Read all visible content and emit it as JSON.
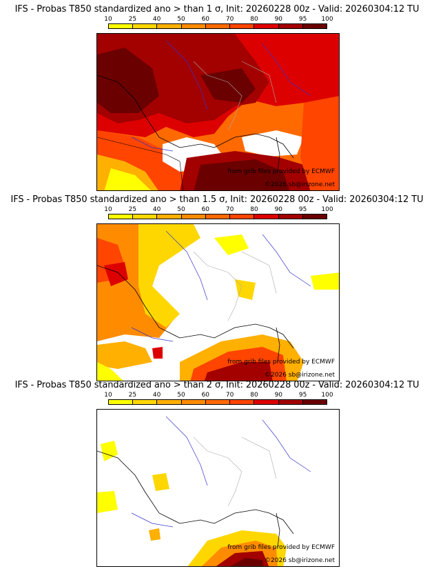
{
  "colors": {
    "scale": [
      "#ffff00",
      "#ffd700",
      "#ffb000",
      "#ff8c00",
      "#ff6a00",
      "#ff4500",
      "#dd0000",
      "#a30000",
      "#6b0000"
    ],
    "coast": "#000000",
    "river": "#3333cc",
    "border": "#aaaaaa"
  },
  "legend": {
    "ticks": [
      "10",
      "25",
      "40",
      "50",
      "60",
      "70",
      "80",
      "90",
      "95",
      "100"
    ]
  },
  "panels": [
    {
      "title": "IFS - Probas T850  standardized ano > than 1 σ, Init: 20260228 00z - Valid: 20260304:12 TU",
      "credit": "from grib files provided by ECMWF",
      "copyright": "©2026 sb@irizone.net"
    },
    {
      "title": "IFS - Probas T850  standardized ano > than 1.5 σ, Init: 20260228 00z - Valid: 20260304:12 TU",
      "credit": "from grib files provided by ECMWF",
      "copyright": "©2026 sb@irizone.net"
    },
    {
      "title": "IFS - Probas T850  standardized ano > than 2 σ, Init: 20260228 00z - Valid: 20260304:12 TU",
      "credit": "from grib files provided by ECMWF",
      "copyright": "©2026 sb@irizone.net"
    }
  ]
}
